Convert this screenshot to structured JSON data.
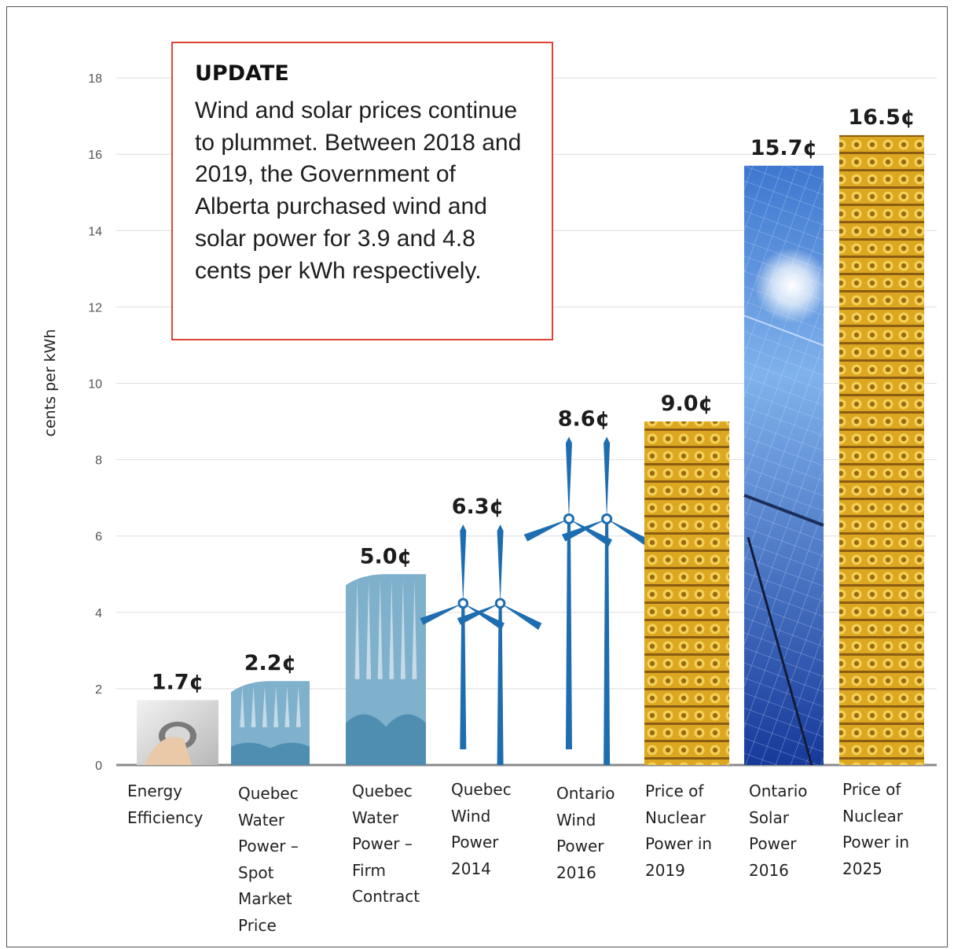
{
  "chart_data": {
    "type": "bar",
    "ylabel": "cents per kWh",
    "xlabel": "",
    "ylim": [
      0,
      18
    ],
    "yticks": [
      0,
      2,
      4,
      6,
      8,
      10,
      12,
      14,
      16,
      18
    ],
    "grid": true,
    "legend": "none",
    "categories": [
      "Energy Efficiency",
      "Quebec Water Power – Spot Market Price",
      "Quebec Water Power – Firm Contract",
      "Quebec Wind Power 2014",
      "Ontario Wind Power 2016",
      "Price of Nuclear Power in 2019",
      "Ontario Solar Power 2016",
      "Price of Nuclear Power in 2025"
    ],
    "values": [
      1.7,
      2.2,
      5.0,
      6.3,
      8.6,
      9.0,
      15.7,
      16.5
    ],
    "data_labels": [
      "1.7¢",
      "2.2¢",
      "5.0¢",
      "6.3¢",
      "8.6¢",
      "9.0¢",
      "15.7¢",
      "16.5¢"
    ],
    "annotation": {
      "title": "UPDATE",
      "text": "Wind and solar prices continue to plummet. Between 2018 and 2019, the Government of Alberta purchased wind and solar power for 3.9 and 4.8 cents per kWh respectively."
    }
  },
  "colors": {
    "grid": "#dedede",
    "axis": "#8a8a8a",
    "water": "#7fb0cc",
    "water_dark": "#4f8eb0",
    "wind": "#1d6db0",
    "nuclear_a": "#c8920e",
    "nuclear_b": "#f3c940",
    "solar_a": "#1f4ea8",
    "solar_b": "#6aa4e6",
    "bulb": "#c9c9c9",
    "box_border": "#e04336"
  }
}
